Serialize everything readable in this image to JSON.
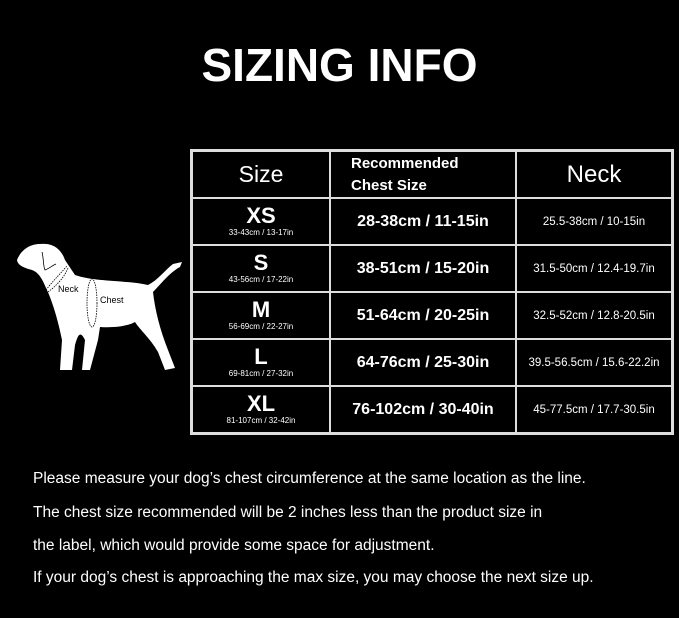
{
  "title": "SIZING INFO",
  "table": {
    "headers": {
      "size": "Size",
      "chest_line1": "Recommended",
      "chest_line2": "Chest Size",
      "neck": "Neck"
    },
    "rows": [
      {
        "size": "XS",
        "range": "33-43cm / 13-17in",
        "chest": "28-38cm / 11-15in",
        "neck": "25.5-38cm / 10-15in"
      },
      {
        "size": "S",
        "range": "43-56cm / 17-22in",
        "chest": "38-51cm / 15-20in",
        "neck": "31.5-50cm / 12.4-19.7in"
      },
      {
        "size": "M",
        "range": "56-69cm / 22-27in",
        "chest": "51-64cm / 20-25in",
        "neck": "32.5-52cm / 12.8-20.5in"
      },
      {
        "size": "L",
        "range": "69-81cm / 27-32in",
        "chest": "64-76cm / 25-30in",
        "neck": "39.5-56.5cm / 15.6-22.2in"
      },
      {
        "size": "XL",
        "range": "81-107cm / 32-42in",
        "chest": "76-102cm / 30-40in",
        "neck": "45-77.5cm / 17.7-30.5in"
      }
    ]
  },
  "diagram": {
    "neck_label": "Neck",
    "chest_label": "Chest"
  },
  "notes": [
    "Please measure your dog’s chest circumference at the same location as the line.",
    "The chest size recommended will be 2 inches less than the product size in",
    "the label, which would provide some space for adjustment.",
    "If your dog’s chest is approaching the max size, you may choose the next size up."
  ]
}
